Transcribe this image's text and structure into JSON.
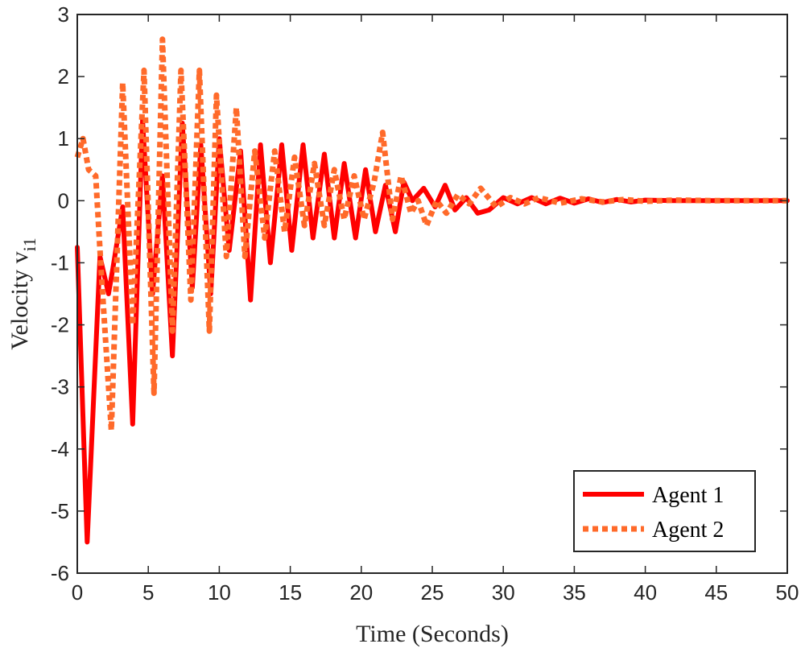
{
  "chart_data": {
    "type": "line",
    "xlabel": "Time (Seconds)",
    "ylabel": {
      "text": "Velocity v",
      "subscript": "i1"
    },
    "xlim": [
      0,
      50
    ],
    "ylim": [
      -6,
      3
    ],
    "xticks": [
      "0",
      "5",
      "10",
      "15",
      "20",
      "25",
      "30",
      "35",
      "40",
      "45",
      "50"
    ],
    "yticks": [
      "3",
      "2",
      "1",
      "0",
      "-1",
      "-2",
      "-3",
      "-4",
      "-5",
      "-6"
    ],
    "grid": false,
    "legend_position": "bottom-right",
    "series": [
      {
        "name": "Agent 1",
        "color": "#ff0000",
        "style": "solid",
        "x": [
          0,
          0.7,
          1.6,
          2.2,
          2.5,
          3.2,
          3.9,
          4.6,
          5.3,
          6.0,
          6.7,
          7.4,
          8.1,
          8.7,
          9.4,
          10.0,
          10.7,
          11.5,
          12.2,
          12.9,
          13.6,
          14.4,
          15.1,
          15.9,
          16.6,
          17.4,
          18.1,
          18.8,
          19.6,
          20.3,
          21.0,
          21.7,
          22.4,
          23.0,
          23.6,
          24.4,
          25.2,
          25.9,
          26.6,
          27.4,
          28.2,
          29.0,
          30.0,
          31.0,
          32.0,
          33.0,
          34.0,
          35.0,
          36.0,
          37.0,
          38.0,
          39.0,
          40.0,
          42.0,
          45.0,
          50.0
        ],
        "y": [
          -0.75,
          -5.5,
          -0.9,
          -1.5,
          -1.1,
          -0.1,
          -3.6,
          1.3,
          -1.5,
          0.4,
          -2.5,
          1.25,
          -1.4,
          0.9,
          -1.5,
          1.0,
          -0.8,
          0.8,
          -1.6,
          0.9,
          -1.0,
          0.9,
          -0.8,
          0.9,
          -0.6,
          0.75,
          -0.6,
          0.6,
          -0.6,
          0.5,
          -0.5,
          0.25,
          -0.5,
          0.3,
          0.0,
          0.2,
          -0.1,
          0.25,
          -0.15,
          0.05,
          -0.2,
          -0.15,
          0.05,
          -0.05,
          0.05,
          -0.05,
          0.04,
          -0.04,
          0.03,
          -0.03,
          0.02,
          -0.02,
          0.01,
          0.0,
          0.0,
          0.0
        ]
      },
      {
        "name": "Agent 2",
        "color": "#ff6a2a",
        "style": "dotted",
        "x": [
          0,
          0.4,
          0.8,
          1.3,
          1.7,
          2.4,
          3.2,
          3.9,
          4.7,
          5.4,
          6.0,
          6.7,
          7.3,
          8.0,
          8.6,
          9.3,
          9.8,
          10.5,
          11.2,
          11.8,
          12.5,
          13.2,
          13.9,
          14.6,
          15.3,
          16.0,
          16.7,
          17.4,
          18.1,
          18.8,
          19.5,
          20.2,
          20.9,
          21.5,
          22.2,
          22.8,
          23.5,
          24.0,
          24.6,
          25.3,
          26.0,
          26.8,
          27.6,
          28.4,
          29.5,
          30.5,
          31.5,
          32.5,
          34.0,
          35.5,
          37.0,
          38.5,
          40.0,
          42.0,
          45.0,
          50.0
        ],
        "y": [
          0.7,
          1.0,
          0.5,
          0.4,
          -1.2,
          -3.7,
          1.9,
          -2.0,
          2.1,
          -3.1,
          2.6,
          -2.1,
          2.1,
          -1.6,
          2.1,
          -2.1,
          1.7,
          -0.9,
          1.5,
          -0.9,
          0.8,
          -0.6,
          0.8,
          -0.5,
          0.7,
          -0.4,
          0.6,
          -0.4,
          0.5,
          -0.3,
          0.4,
          -0.3,
          0.3,
          1.1,
          -0.3,
          0.4,
          -0.2,
          0.0,
          -0.4,
          0.0,
          -0.2,
          0.1,
          -0.05,
          0.2,
          -0.1,
          0.05,
          -0.05,
          0.05,
          -0.04,
          0.03,
          -0.02,
          0.02,
          -0.01,
          0.01,
          0.0,
          0.0
        ]
      }
    ]
  }
}
